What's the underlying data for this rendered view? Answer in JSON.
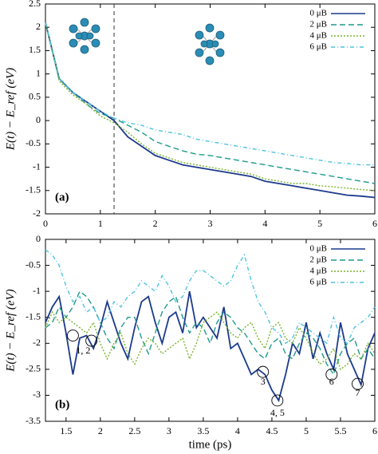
{
  "chart_data": [
    {
      "type": "line",
      "panel_label": "(a)",
      "y_label": "E(t) − E_ref (eV)",
      "x": [
        0,
        0.25,
        0.5,
        0.75,
        1,
        1.25,
        1.5,
        1.75,
        2,
        2.25,
        2.5,
        2.75,
        3,
        3.25,
        3.5,
        3.75,
        4,
        4.25,
        4.5,
        4.75,
        5,
        5.25,
        5.5,
        5.75,
        6
      ],
      "series": [
        {
          "name": "0 μB",
          "color": "#1b3a8c",
          "dash": "solid",
          "values": [
            2.1,
            0.9,
            0.6,
            0.4,
            0.2,
            0.0,
            -0.35,
            -0.55,
            -0.75,
            -0.85,
            -0.95,
            -1.0,
            -1.05,
            -1.1,
            -1.15,
            -1.2,
            -1.3,
            -1.35,
            -1.4,
            -1.45,
            -1.5,
            -1.55,
            -1.6,
            -1.62,
            -1.65
          ]
        },
        {
          "name": "2 μB",
          "color": "#1f9a8a",
          "dash": "dashed",
          "values": [
            2.1,
            0.9,
            0.6,
            0.35,
            0.15,
            0.05,
            -0.1,
            -0.25,
            -0.45,
            -0.55,
            -0.65,
            -0.72,
            -0.75,
            -0.8,
            -0.85,
            -0.9,
            -0.95,
            -1.0,
            -1.05,
            -1.1,
            -1.15,
            -1.2,
            -1.25,
            -1.3,
            -1.35
          ]
        },
        {
          "name": "4 μB",
          "color": "#7ab32c",
          "dash": "dotted",
          "values": [
            2.1,
            0.85,
            0.55,
            0.35,
            0.1,
            -0.05,
            -0.25,
            -0.5,
            -0.7,
            -0.8,
            -0.9,
            -0.95,
            -1.0,
            -1.05,
            -1.1,
            -1.15,
            -1.25,
            -1.3,
            -1.35,
            -1.35,
            -1.4,
            -1.42,
            -1.45,
            -1.48,
            -1.5
          ]
        },
        {
          "name": "6 μB",
          "color": "#4cc3e0",
          "dash": "dashdot",
          "values": [
            2.1,
            0.9,
            0.6,
            0.4,
            0.2,
            0.05,
            -0.05,
            -0.1,
            -0.2,
            -0.25,
            -0.3,
            -0.4,
            -0.45,
            -0.5,
            -0.55,
            -0.6,
            -0.65,
            -0.7,
            -0.75,
            -0.8,
            -0.85,
            -0.9,
            -0.92,
            -0.95,
            -0.95
          ]
        }
      ],
      "vline": 1.25,
      "xlim": [
        0,
        6
      ],
      "xticks": [
        0,
        1,
        2,
        3,
        4,
        5,
        6
      ],
      "ylim": [
        -2,
        2.5
      ],
      "yticks": [
        2.5,
        2,
        1.5,
        1,
        0.5,
        0,
        -0.5,
        -1,
        -1.5,
        -2
      ],
      "legend": "upper right"
    },
    {
      "type": "line",
      "panel_label": "(b)",
      "y_label": "E(t) − E_ref (eV)",
      "x_label": "time (ps)",
      "x": [
        1.2,
        1.3,
        1.4,
        1.5,
        1.6,
        1.7,
        1.8,
        1.9,
        2,
        2.1,
        2.2,
        2.3,
        2.4,
        2.5,
        2.6,
        2.7,
        2.8,
        2.9,
        3,
        3.1,
        3.2,
        3.3,
        3.4,
        3.5,
        3.6,
        3.7,
        3.8,
        3.9,
        4,
        4.1,
        4.2,
        4.3,
        4.4,
        4.5,
        4.6,
        4.7,
        4.8,
        4.9,
        5,
        5.1,
        5.2,
        5.3,
        5.4,
        5.5,
        5.6,
        5.7,
        5.8,
        5.9,
        6
      ],
      "series": [
        {
          "name": "0 μB",
          "color": "#1b3a8c",
          "dash": "solid",
          "values": [
            -1.6,
            -1.3,
            -1.1,
            -1.8,
            -2.6,
            -1.9,
            -1.85,
            -2.1,
            -1.7,
            -1.2,
            -1.6,
            -2.0,
            -2.3,
            -1.7,
            -1.2,
            -1.1,
            -1.6,
            -2.0,
            -1.5,
            -1.4,
            -1.8,
            -1.0,
            -1.7,
            -1.5,
            -1.7,
            -1.9,
            -1.3,
            -2.1,
            -2.0,
            -2.3,
            -2.6,
            -2.5,
            -2.6,
            -2.9,
            -3.1,
            -2.6,
            -2.0,
            -2.2,
            -1.6,
            -2.3,
            -1.8,
            -2.2,
            -2.5,
            -1.6,
            -2.2,
            -2.5,
            -2.8,
            -2.1,
            -1.8
          ]
        },
        {
          "name": "2 μB",
          "color": "#1f9a8a",
          "dash": "dashed",
          "values": [
            -1.7,
            -1.6,
            -1.3,
            -1.5,
            -1.3,
            -1.0,
            -1.1,
            -1.3,
            -1.6,
            -1.9,
            -2.1,
            -1.7,
            -1.5,
            -1.5,
            -1.9,
            -2.2,
            -1.8,
            -1.4,
            -1.2,
            -1.1,
            -1.5,
            -1.8,
            -1.6,
            -1.7,
            -2.0,
            -1.6,
            -1.4,
            -1.5,
            -1.7,
            -1.8,
            -2.0,
            -2.2,
            -2.3,
            -2.0,
            -1.9,
            -2.2,
            -2.3,
            -2.0,
            -1.8,
            -1.9,
            -2.1,
            -2.4,
            -2.6,
            -2.2,
            -2.0,
            -1.9,
            -2.3,
            -2.1,
            -2.3
          ]
        },
        {
          "name": "4 μB",
          "color": "#7ab32c",
          "dash": "dotted",
          "values": [
            -1.7,
            -1.4,
            -1.6,
            -1.5,
            -1.6,
            -1.7,
            -1.8,
            -1.6,
            -2.0,
            -2.3,
            -2.0,
            -1.8,
            -2.2,
            -2.4,
            -2.1,
            -1.9,
            -2.0,
            -2.2,
            -2.1,
            -2.0,
            -1.9,
            -2.3,
            -2.0,
            -1.6,
            -1.5,
            -1.4,
            -1.6,
            -1.8,
            -1.9,
            -1.7,
            -1.6,
            -1.9,
            -2.1,
            -1.7,
            -1.6,
            -1.9,
            -2.0,
            -1.7,
            -1.9,
            -2.2,
            -2.4,
            -2.3,
            -2.1,
            -2.5,
            -2.4,
            -2.2,
            -2.3,
            -2.0,
            -2.2
          ]
        },
        {
          "name": "6 μB",
          "color": "#4cc3e0",
          "dash": "dashdot",
          "values": [
            -0.2,
            -0.3,
            -0.5,
            -0.9,
            -1.2,
            -1.1,
            -1.4,
            -1.3,
            -1.6,
            -1.5,
            -1.2,
            -1.3,
            -1.1,
            -1.0,
            -0.8,
            -0.9,
            -1.0,
            -0.7,
            -0.9,
            -1.2,
            -1.1,
            -0.8,
            -0.6,
            -0.6,
            -0.7,
            -0.8,
            -0.9,
            -0.8,
            -0.5,
            -0.3,
            -0.8,
            -1.2,
            -1.4,
            -1.7,
            -1.8,
            -2.0,
            -1.9,
            -1.6,
            -1.7,
            -1.8,
            -1.9,
            -2.0,
            -1.5,
            -1.9,
            -2.0,
            -1.7,
            -1.6,
            -1.5,
            -1.3
          ]
        }
      ],
      "markers": [
        {
          "x": 1.6,
          "y": -1.85
        },
        {
          "x": 1.87,
          "y": -1.95
        },
        {
          "x": 4.37,
          "y": -2.55
        },
        {
          "x": 4.58,
          "y": -3.1
        },
        {
          "x": 5.37,
          "y": -2.6
        },
        {
          "x": 5.75,
          "y": -2.78
        }
      ],
      "annotations": [
        {
          "text": "1, 2",
          "x": 1.75,
          "y": -2.15
        },
        {
          "text": "3",
          "x": 4.37,
          "y": -2.75
        },
        {
          "text": "4, 5",
          "x": 4.58,
          "y": -3.35
        },
        {
          "text": "6",
          "x": 5.37,
          "y": -2.75
        },
        {
          "text": "7",
          "x": 5.75,
          "y": -2.97
        }
      ],
      "xlim": [
        1.2,
        6
      ],
      "xticks": [
        1.5,
        2,
        2.5,
        3,
        3.5,
        4,
        4.5,
        5,
        5.5,
        6
      ],
      "ylim": [
        -3.5,
        0
      ],
      "yticks": [
        0,
        -0.5,
        -1,
        -1.5,
        -2,
        -2.5,
        -3,
        -3.5
      ],
      "legend": "upper right"
    }
  ]
}
